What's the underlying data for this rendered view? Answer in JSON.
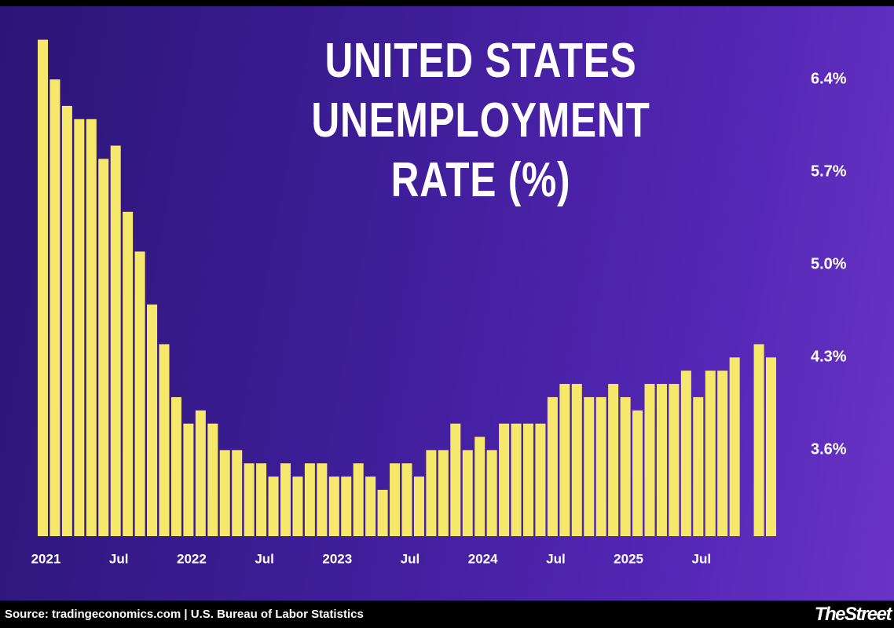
{
  "chart_data": {
    "type": "bar",
    "title": "UNITED STATES UNEMPLOYMENT RATE (%)",
    "source": "Source: tradingeconomics.com | U.S. Bureau of Labor Statistics",
    "brand": "TheStreet",
    "color": "#f6e86a",
    "categories": [
      "2021",
      null,
      null,
      null,
      null,
      null,
      "Jul",
      null,
      null,
      null,
      null,
      null,
      "2022",
      null,
      null,
      null,
      null,
      null,
      "Jul",
      null,
      null,
      null,
      null,
      null,
      "2023",
      null,
      null,
      null,
      null,
      null,
      "Jul",
      null,
      null,
      null,
      null,
      null,
      "2024",
      null,
      null,
      null,
      null,
      null,
      "Jul",
      null,
      null,
      null,
      null,
      null,
      "2025",
      null,
      null,
      null,
      null,
      null,
      "Jul",
      null,
      null,
      null,
      null,
      null,
      null
    ],
    "values": [
      6.7,
      6.4,
      6.2,
      6.1,
      6.1,
      5.8,
      5.9,
      5.4,
      5.1,
      4.7,
      4.4,
      4.0,
      3.8,
      3.9,
      3.8,
      3.6,
      3.6,
      3.5,
      3.5,
      3.4,
      3.5,
      3.4,
      3.5,
      3.5,
      3.4,
      3.4,
      3.5,
      3.4,
      3.3,
      3.5,
      3.5,
      3.4,
      3.6,
      3.6,
      3.8,
      3.6,
      3.7,
      3.6,
      3.8,
      3.8,
      3.8,
      3.8,
      4.0,
      4.1,
      4.1,
      4.0,
      4.0,
      4.1,
      4.0,
      3.9,
      4.1,
      4.1,
      4.1,
      4.2,
      4.0,
      4.2,
      4.2,
      4.3,
      null,
      4.4,
      4.3
    ],
    "ylim": [
      2.95,
      7.0
    ],
    "yticks": [
      {
        "value": 3.6,
        "label": "3.6%"
      },
      {
        "value": 4.3,
        "label": "4.3%"
      },
      {
        "value": 5.0,
        "label": "5.0%"
      },
      {
        "value": 5.7,
        "label": "5.7%"
      },
      {
        "value": 6.4,
        "label": "6.4%"
      }
    ],
    "grid": false
  }
}
